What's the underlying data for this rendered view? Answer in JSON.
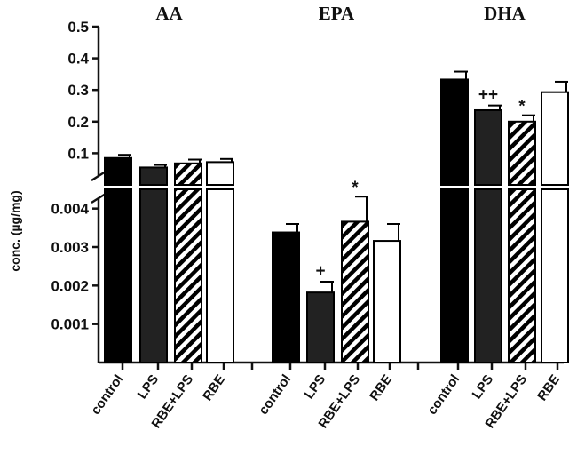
{
  "chart_data": {
    "type": "bar",
    "ylabel": "conc. (µg/mg)",
    "broken_axis": true,
    "upper_ylim": [
      0,
      0.5
    ],
    "upper_ticks": [
      "0.1",
      "0.2",
      "0.3",
      "0.4",
      "0.5"
    ],
    "lower_ylim": [
      0,
      0.0045
    ],
    "lower_ticks": [
      "0.001",
      "0.002",
      "0.003",
      "0.004"
    ],
    "categories": [
      "control",
      "LPS",
      "RBE+LPS",
      "RBE"
    ],
    "fills": {
      "control": "#000000",
      "LPS": "#222222",
      "RBE+LPS": "hatched",
      "RBE": "#ffffff"
    },
    "groups": [
      {
        "name": "AA",
        "panel": "upper",
        "values": [
          0.085,
          0.055,
          0.068,
          0.072
        ],
        "errors": [
          0.01,
          0.008,
          0.012,
          0.01
        ],
        "annotations": [
          "",
          "",
          "",
          ""
        ]
      },
      {
        "name": "EPA",
        "panel": "lower",
        "values": [
          0.00338,
          0.00182,
          0.00366,
          0.00316
        ],
        "errors": [
          0.00022,
          0.00028,
          0.00065,
          0.00044
        ],
        "annotations": [
          "",
          "+",
          "*",
          ""
        ]
      },
      {
        "name": "DHA",
        "panel": "upper",
        "values": [
          0.333,
          0.236,
          0.2,
          0.293
        ],
        "errors": [
          0.025,
          0.015,
          0.02,
          0.033
        ],
        "annotations": [
          "",
          "++",
          "*",
          ""
        ]
      }
    ]
  }
}
